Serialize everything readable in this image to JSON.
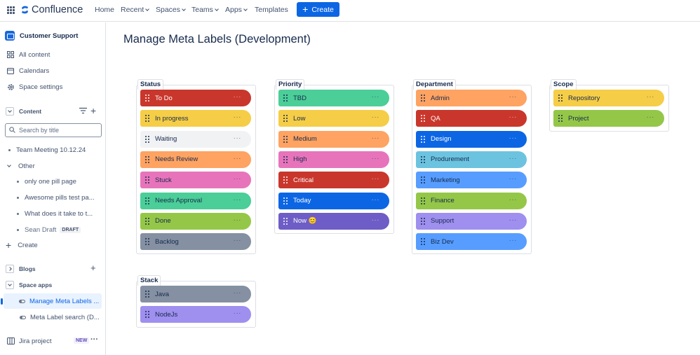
{
  "topnav": {
    "logo": "Confluence",
    "items": [
      "Home",
      "Recent",
      "Spaces",
      "Teams",
      "Apps",
      "Templates"
    ],
    "create": "Create"
  },
  "sidebar": {
    "space_name": "Customer Support",
    "all_content": "All content",
    "calendars": "Calendars",
    "space_settings": "Space settings",
    "content_label": "Content",
    "search_placeholder": "Search by title",
    "tree": [
      {
        "label": "Team Meeting 10.12.24"
      },
      {
        "label": "Other"
      },
      {
        "label": "only one pill page"
      },
      {
        "label": "Awesome pills test pa..."
      },
      {
        "label": "What does it take to t..."
      },
      {
        "label": "Sean Draft",
        "badge": "DRAFT"
      }
    ],
    "create": "Create",
    "blogs": "Blogs",
    "space_apps": "Space apps",
    "apps": [
      {
        "label": "Manage Meta Labels ..."
      },
      {
        "label": "Meta Label search (D..."
      }
    ],
    "jira_project": "Jira project",
    "jira_badge": "NEW"
  },
  "main": {
    "title": "Manage Meta Labels (Development)",
    "groups": [
      {
        "title": "Status",
        "labels": [
          {
            "text": "To Do",
            "bg": "#c9372c",
            "fg": "#ffffff"
          },
          {
            "text": "In progress",
            "bg": "#f5cd47",
            "fg": "#172b4d"
          },
          {
            "text": "Waiting",
            "bg": "#f1f2f4",
            "fg": "#172b4d"
          },
          {
            "text": "Needs Review",
            "bg": "#fea362",
            "fg": "#172b4d"
          },
          {
            "text": "Stuck",
            "bg": "#e774bb",
            "fg": "#172b4d"
          },
          {
            "text": "Needs Approval",
            "bg": "#4bce97",
            "fg": "#172b4d"
          },
          {
            "text": "Done",
            "bg": "#94c748",
            "fg": "#172b4d"
          },
          {
            "text": "Backlog",
            "bg": "#8590a2",
            "fg": "#172b4d"
          }
        ]
      },
      {
        "title": "Priority",
        "labels": [
          {
            "text": "TBD",
            "bg": "#4bce97",
            "fg": "#172b4d"
          },
          {
            "text": "Low",
            "bg": "#f5cd47",
            "fg": "#172b4d"
          },
          {
            "text": "Medium",
            "bg": "#fea362",
            "fg": "#172b4d"
          },
          {
            "text": "High",
            "bg": "#e774bb",
            "fg": "#172b4d"
          },
          {
            "text": "Critical",
            "bg": "#c9372c",
            "fg": "#ffffff"
          },
          {
            "text": "Today",
            "bg": "#0c66e4",
            "fg": "#ffffff"
          },
          {
            "text": "Now 😊",
            "bg": "#6e5dc6",
            "fg": "#ffffff"
          }
        ]
      },
      {
        "title": "Department",
        "labels": [
          {
            "text": "Admin",
            "bg": "#fea362",
            "fg": "#172b4d"
          },
          {
            "text": "QA",
            "bg": "#c9372c",
            "fg": "#ffffff"
          },
          {
            "text": "Design",
            "bg": "#0c66e4",
            "fg": "#ffffff"
          },
          {
            "text": "Produrement",
            "bg": "#6cc3e0",
            "fg": "#172b4d"
          },
          {
            "text": "Marketing",
            "bg": "#579dff",
            "fg": "#172b4d"
          },
          {
            "text": "Finance",
            "bg": "#94c748",
            "fg": "#172b4d"
          },
          {
            "text": "Support",
            "bg": "#9f8fef",
            "fg": "#172b4d"
          },
          {
            "text": "Biz Dev",
            "bg": "#579dff",
            "fg": "#172b4d"
          }
        ]
      },
      {
        "title": "Scope",
        "labels": [
          {
            "text": "Repository",
            "bg": "#f5cd47",
            "fg": "#172b4d"
          },
          {
            "text": "Project",
            "bg": "#94c748",
            "fg": "#172b4d"
          }
        ]
      },
      {
        "title": "Stack",
        "labels": [
          {
            "text": "Java",
            "bg": "#8590a2",
            "fg": "#172b4d"
          },
          {
            "text": "NodeJs",
            "bg": "#9f8fef",
            "fg": "#172b4d"
          }
        ]
      }
    ]
  }
}
